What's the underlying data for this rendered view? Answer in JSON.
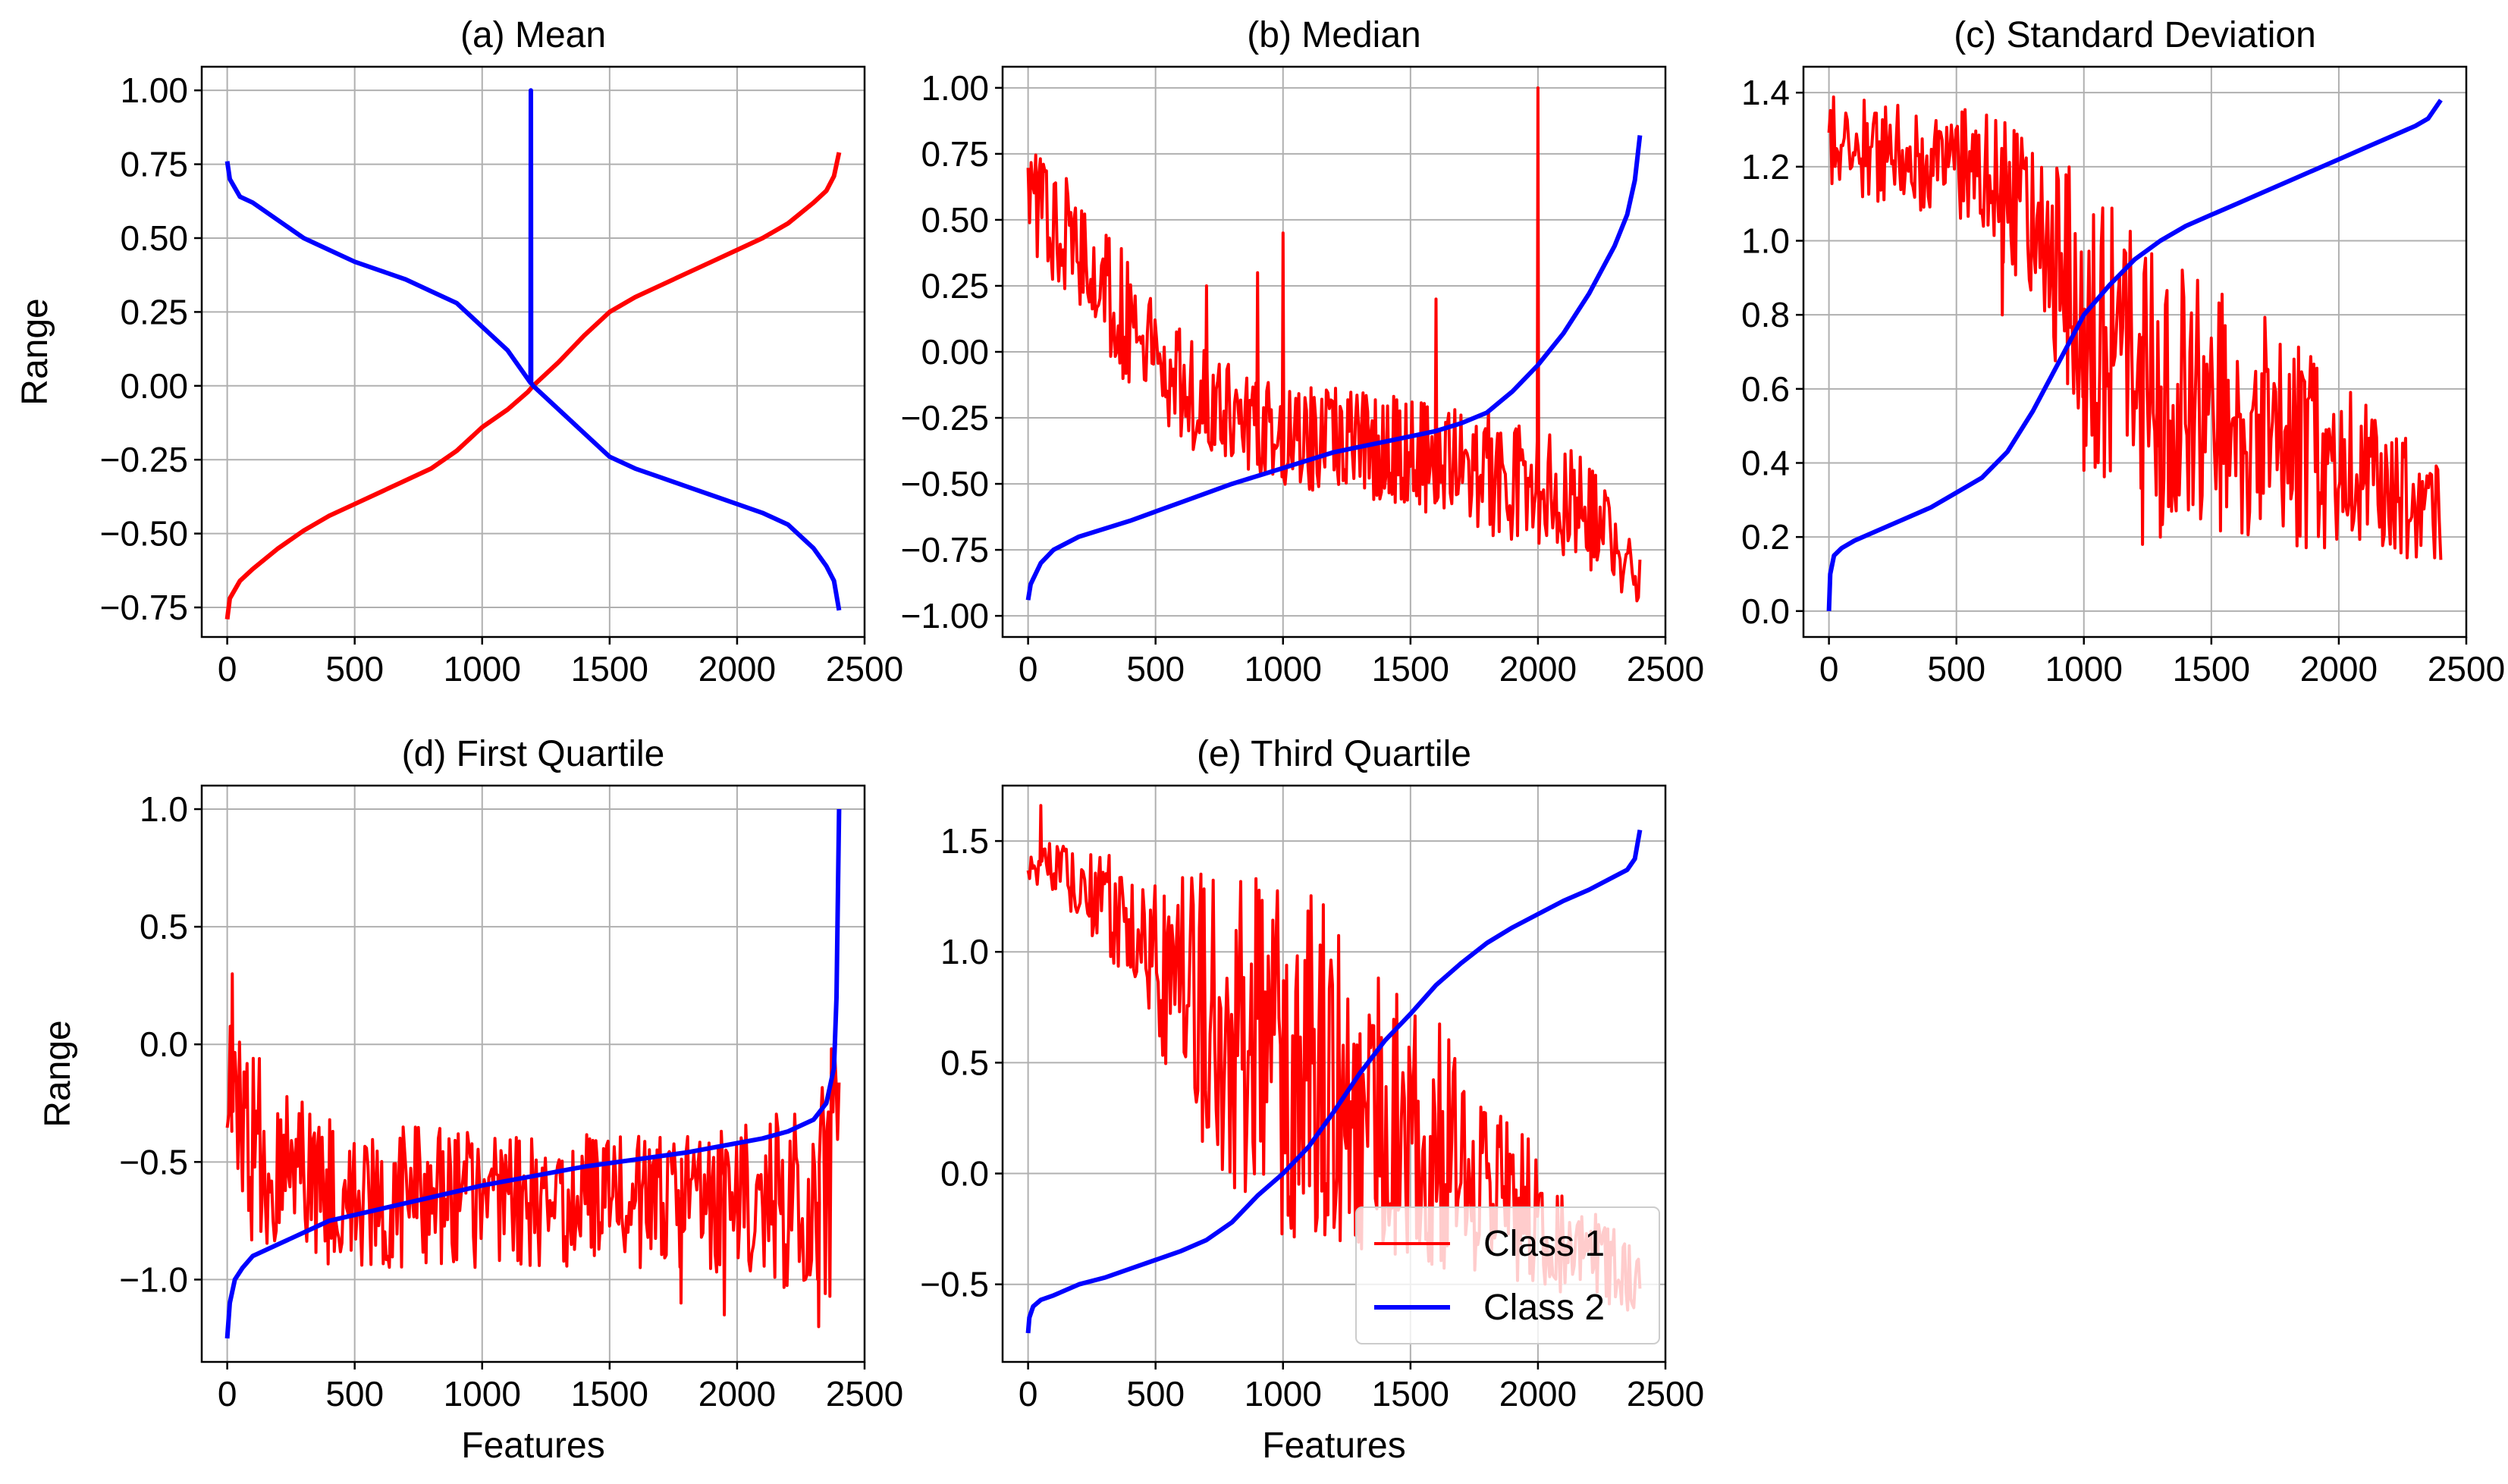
{
  "colors": {
    "class1": "#ff0000",
    "class2": "#0000ff",
    "grid": "#b0b0b0",
    "axis": "#000000"
  },
  "legend": {
    "entries": [
      "Class 1",
      "Class 2"
    ],
    "placement": "lower-right of panel (e)"
  },
  "chart_data": [
    {
      "type": "line",
      "title": "(a) Mean",
      "xlabel": "",
      "ylabel": "Range",
      "xlim": [
        -100,
        2500
      ],
      "ylim": [
        -0.85,
        1.08
      ],
      "xticks": [
        0,
        500,
        1000,
        1500,
        2000,
        2500
      ],
      "xtick_labels": [
        "0",
        "500",
        "1000",
        "1500",
        "2000",
        "2500"
      ],
      "yticks": [
        1.0,
        0.75,
        0.5,
        0.25,
        0.0,
        -0.25,
        -0.5,
        -0.75
      ],
      "ytick_labels": [
        "1.00",
        "0.75",
        "0.50",
        "0.25",
        "0.00",
        "−0.25",
        "−0.50",
        "−0.75"
      ],
      "grid": true,
      "series": [
        {
          "name": "Class 1",
          "color": "#ff0000",
          "x": [
            0,
            10,
            50,
            100,
            200,
            300,
            400,
            500,
            600,
            700,
            800,
            900,
            1000,
            1100,
            1180,
            1200,
            1300,
            1400,
            1500,
            1600,
            1700,
            1800,
            1900,
            2000,
            2100,
            2200,
            2300,
            2350,
            2380,
            2400
          ],
          "y": [
            -0.79,
            -0.72,
            -0.66,
            -0.62,
            -0.55,
            -0.49,
            -0.44,
            -0.4,
            -0.36,
            -0.32,
            -0.28,
            -0.22,
            -0.14,
            -0.08,
            -0.02,
            0.0,
            0.08,
            0.17,
            0.25,
            0.3,
            0.34,
            0.38,
            0.42,
            0.46,
            0.5,
            0.55,
            0.62,
            0.66,
            0.71,
            0.79
          ]
        },
        {
          "name": "Class 2",
          "color": "#0000ff",
          "x": [
            0,
            10,
            50,
            100,
            200,
            300,
            400,
            500,
            600,
            700,
            800,
            900,
            1000,
            1100,
            1190,
            1191,
            1192,
            1200,
            1300,
            1400,
            1500,
            1600,
            1700,
            1800,
            1900,
            2000,
            2100,
            2200,
            2300,
            2350,
            2380,
            2400
          ],
          "y": [
            0.76,
            0.7,
            0.64,
            0.62,
            0.56,
            0.5,
            0.46,
            0.42,
            0.39,
            0.36,
            0.32,
            0.28,
            0.2,
            0.12,
            0.01,
            1.0,
            0.01,
            0.0,
            -0.08,
            -0.16,
            -0.24,
            -0.28,
            -0.31,
            -0.34,
            -0.37,
            -0.4,
            -0.43,
            -0.47,
            -0.55,
            -0.61,
            -0.66,
            -0.76
          ]
        }
      ]
    },
    {
      "type": "line",
      "title": "(b) Median",
      "xlabel": "",
      "ylabel": "",
      "xlim": [
        -100,
        2500
      ],
      "ylim": [
        -1.08,
        1.08
      ],
      "xticks": [
        0,
        500,
        1000,
        1500,
        2000,
        2500
      ],
      "xtick_labels": [
        "0",
        "500",
        "1000",
        "1500",
        "2000",
        "2500"
      ],
      "yticks": [
        1.0,
        0.75,
        0.5,
        0.25,
        0.0,
        -0.25,
        -0.5,
        -0.75,
        -1.0
      ],
      "ytick_labels": [
        "1.00",
        "0.75",
        "0.50",
        "0.25",
        "0.00",
        "−0.25",
        "−0.50",
        "−0.75",
        "−1.00"
      ],
      "grid": true,
      "series": [
        {
          "name": "Class 1",
          "color": "#ff0000",
          "style": "noisy",
          "x": [
            0,
            200,
            400,
            600,
            800,
            1000,
            1200,
            1400,
            1600,
            1800,
            2000,
            2200,
            2400
          ],
          "y_high": [
            0.82,
            0.62,
            0.35,
            0.08,
            -0.05,
            -0.12,
            -0.12,
            -0.16,
            -0.18,
            -0.22,
            -0.28,
            -0.42,
            -0.75
          ],
          "y_low": [
            0.35,
            0.15,
            -0.15,
            -0.35,
            -0.45,
            -0.52,
            -0.55,
            -0.57,
            -0.62,
            -0.7,
            -0.75,
            -0.82,
            -0.98
          ],
          "spikes": [
            [
              2000,
              1.0
            ],
            [
              1000,
              0.45
            ],
            [
              900,
              0.3
            ],
            [
              1600,
              0.2
            ],
            [
              700,
              0.25
            ]
          ]
        },
        {
          "name": "Class 2",
          "color": "#0000ff",
          "x": [
            0,
            10,
            50,
            100,
            200,
            400,
            600,
            800,
            1000,
            1200,
            1400,
            1600,
            1700,
            1800,
            1850,
            1900,
            2000,
            2100,
            2200,
            2300,
            2350,
            2380,
            2400
          ],
          "y": [
            -0.94,
            -0.88,
            -0.8,
            -0.75,
            -0.7,
            -0.64,
            -0.57,
            -0.5,
            -0.44,
            -0.38,
            -0.34,
            -0.3,
            -0.27,
            -0.23,
            -0.19,
            -0.15,
            -0.05,
            0.07,
            0.22,
            0.4,
            0.52,
            0.65,
            0.82
          ]
        }
      ]
    },
    {
      "type": "line",
      "title": "(c) Standard Deviation",
      "xlabel": "",
      "ylabel": "",
      "xlim": [
        -100,
        2500
      ],
      "ylim": [
        -0.07,
        1.47
      ],
      "xticks": [
        0,
        500,
        1000,
        1500,
        2000,
        2500
      ],
      "xtick_labels": [
        "0",
        "500",
        "1000",
        "1500",
        "2000",
        "2500"
      ],
      "yticks": [
        1.4,
        1.2,
        1.0,
        0.8,
        0.6,
        0.4,
        0.2,
        0.0
      ],
      "ytick_labels": [
        "1.4",
        "1.2",
        "1.0",
        "0.8",
        "0.6",
        "0.4",
        "0.2",
        "0.0"
      ],
      "grid": true,
      "series": [
        {
          "name": "Class 1",
          "color": "#ff0000",
          "style": "noisy",
          "x": [
            0,
            200,
            400,
            600,
            800,
            1000,
            1100,
            1200,
            1400,
            1600,
            1800,
            2000,
            2200,
            2400
          ],
          "y_high": [
            1.4,
            1.38,
            1.37,
            1.35,
            1.3,
            1.18,
            1.1,
            1.02,
            0.95,
            0.85,
            0.75,
            0.62,
            0.5,
            0.4
          ],
          "y_low": [
            1.15,
            1.1,
            1.05,
            1.0,
            0.85,
            0.45,
            0.3,
            0.25,
            0.2,
            0.18,
            0.17,
            0.16,
            0.15,
            0.13
          ],
          "spikes": [
            [
              1000,
              0.38
            ],
            [
              680,
              0.8
            ],
            [
              1230,
              0.18
            ],
            [
              1300,
              0.2
            ]
          ]
        },
        {
          "name": "Class 2",
          "color": "#0000ff",
          "x": [
            0,
            5,
            20,
            50,
            100,
            200,
            300,
            400,
            500,
            600,
            700,
            800,
            900,
            1000,
            1100,
            1200,
            1300,
            1400,
            1500,
            1600,
            1700,
            1800,
            1900,
            2000,
            2100,
            2200,
            2300,
            2350,
            2400
          ],
          "y": [
            0.0,
            0.1,
            0.15,
            0.17,
            0.19,
            0.22,
            0.25,
            0.28,
            0.32,
            0.36,
            0.43,
            0.54,
            0.67,
            0.8,
            0.88,
            0.95,
            1.0,
            1.04,
            1.07,
            1.1,
            1.13,
            1.16,
            1.19,
            1.22,
            1.25,
            1.28,
            1.31,
            1.33,
            1.38
          ]
        }
      ]
    },
    {
      "type": "line",
      "title": "(d) First Quartile",
      "xlabel": "Features",
      "ylabel": "Range",
      "xlim": [
        -100,
        2500
      ],
      "ylim": [
        -1.35,
        1.1
      ],
      "xticks": [
        0,
        500,
        1000,
        1500,
        2000,
        2500
      ],
      "xtick_labels": [
        "0",
        "500",
        "1000",
        "1500",
        "2000",
        "2500"
      ],
      "yticks": [
        1.0,
        0.5,
        0.0,
        -0.5,
        -1.0
      ],
      "ytick_labels": [
        "1.0",
        "0.5",
        "0.0",
        "−0.5",
        "−1.0"
      ],
      "grid": true,
      "series": [
        {
          "name": "Class 1",
          "color": "#ff0000",
          "style": "noisy",
          "x": [
            0,
            100,
            200,
            400,
            600,
            800,
            1000,
            1200,
            1400,
            1600,
            1800,
            2000,
            2200,
            2320,
            2360,
            2400
          ],
          "y_high": [
            0.25,
            0.0,
            -0.15,
            -0.3,
            -0.35,
            -0.35,
            -0.38,
            -0.38,
            -0.38,
            -0.38,
            -0.36,
            -0.34,
            -0.28,
            -0.2,
            0.0,
            0.0
          ],
          "y_low": [
            -0.75,
            -0.85,
            -0.9,
            -0.95,
            -0.95,
            -0.95,
            -0.95,
            -0.95,
            -0.95,
            -0.95,
            -0.95,
            -0.98,
            -1.05,
            -1.15,
            -1.2,
            -1.1
          ],
          "spikes": [
            [
              20,
              0.3
            ],
            [
              2320,
              -1.2
            ],
            [
              1780,
              -1.1
            ],
            [
              1950,
              -1.15
            ]
          ]
        },
        {
          "name": "Class 2",
          "color": "#0000ff",
          "x": [
            0,
            10,
            30,
            60,
            100,
            200,
            300,
            400,
            600,
            800,
            1000,
            1200,
            1400,
            1600,
            1800,
            2000,
            2100,
            2200,
            2300,
            2350,
            2380,
            2390,
            2400
          ],
          "y": [
            -1.25,
            -1.1,
            -1.0,
            -0.95,
            -0.9,
            -0.85,
            -0.8,
            -0.75,
            -0.7,
            -0.65,
            -0.6,
            -0.56,
            -0.52,
            -0.49,
            -0.46,
            -0.42,
            -0.4,
            -0.37,
            -0.32,
            -0.25,
            -0.1,
            0.2,
            1.0
          ]
        }
      ]
    },
    {
      "type": "line",
      "title": "(e) Third Quartile",
      "xlabel": "Features",
      "ylabel": "",
      "xlim": [
        -100,
        2500
      ],
      "ylim": [
        -0.85,
        1.75
      ],
      "xticks": [
        0,
        500,
        1000,
        1500,
        2000,
        2500
      ],
      "xtick_labels": [
        "0",
        "500",
        "1000",
        "1500",
        "2000",
        "2500"
      ],
      "yticks": [
        1.5,
        1.0,
        0.5,
        0.0,
        -0.5
      ],
      "ytick_labels": [
        "1.5",
        "1.0",
        "0.5",
        "0.0",
        "−0.5"
      ],
      "grid": true,
      "series": [
        {
          "name": "Class 1",
          "color": "#ff0000",
          "style": "noisy",
          "x": [
            0,
            100,
            200,
            300,
            400,
            500,
            600,
            700,
            800,
            900,
            1000,
            1100,
            1200,
            1300,
            1400,
            1500,
            1600,
            1700,
            1800,
            1900,
            2000,
            2100,
            2200,
            2300,
            2400
          ],
          "y_high": [
            1.6,
            1.5,
            1.45,
            1.45,
            1.4,
            1.4,
            1.38,
            1.36,
            1.35,
            1.33,
            1.3,
            1.28,
            1.2,
            1.1,
            0.95,
            0.8,
            0.7,
            0.55,
            0.4,
            0.25,
            0.1,
            -0.05,
            -0.15,
            -0.25,
            -0.35
          ],
          "y_low": [
            1.3,
            1.25,
            1.15,
            1.0,
            0.8,
            0.6,
            0.3,
            0.0,
            -0.2,
            -0.3,
            -0.3,
            -0.3,
            -0.35,
            -0.35,
            -0.4,
            -0.4,
            -0.42,
            -0.45,
            -0.45,
            -0.48,
            -0.5,
            -0.55,
            -0.6,
            -0.62,
            -0.65
          ],
          "spikes": [
            [
              50,
              1.66
            ]
          ]
        },
        {
          "name": "Class 2",
          "color": "#0000ff",
          "x": [
            0,
            5,
            20,
            50,
            100,
            200,
            300,
            400,
            500,
            600,
            700,
            800,
            900,
            1000,
            1100,
            1200,
            1300,
            1400,
            1500,
            1600,
            1700,
            1800,
            1900,
            2000,
            2100,
            2200,
            2300,
            2350,
            2380,
            2400
          ],
          "y": [
            -0.72,
            -0.65,
            -0.6,
            -0.57,
            -0.55,
            -0.5,
            -0.47,
            -0.43,
            -0.39,
            -0.35,
            -0.3,
            -0.22,
            -0.1,
            0.0,
            0.12,
            0.28,
            0.45,
            0.6,
            0.72,
            0.85,
            0.95,
            1.04,
            1.11,
            1.17,
            1.23,
            1.28,
            1.34,
            1.37,
            1.42,
            1.55
          ]
        }
      ]
    }
  ]
}
